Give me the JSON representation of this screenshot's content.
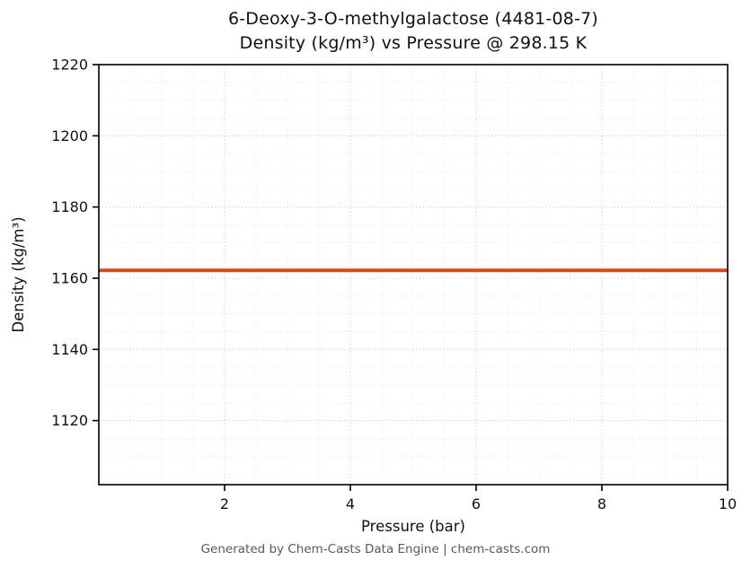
{
  "chart_data": {
    "type": "line",
    "title_line1": "6-Deoxy-3-O-methylgalactose (4481-08-7)",
    "title_line2": "Density (kg/m³) vs Pressure @ 298.15 K",
    "xlabel": "Pressure (bar)",
    "ylabel": "Density (kg/m³)",
    "x": [
      0,
      1,
      2,
      3,
      4,
      5,
      6,
      7,
      8,
      9,
      10
    ],
    "series": [
      {
        "name": "Density",
        "values": [
          1162.2,
          1162.2,
          1162.2,
          1162.2,
          1162.2,
          1162.2,
          1162.2,
          1162.2,
          1162.2,
          1162.2,
          1162.2
        ]
      }
    ],
    "xlim": [
      0,
      10
    ],
    "ylim": [
      1102,
      1220
    ],
    "xticks": [
      2,
      4,
      6,
      8,
      10
    ],
    "yticks": [
      1120,
      1140,
      1160,
      1180,
      1200,
      1220
    ],
    "x_minor_step": 0.5,
    "y_minor_step": 5,
    "line_color": "#d14a21",
    "line_width": 4,
    "grid": true,
    "legend": false
  },
  "footer": {
    "text": "Generated by Chem-Casts Data Engine | chem-casts.com"
  }
}
